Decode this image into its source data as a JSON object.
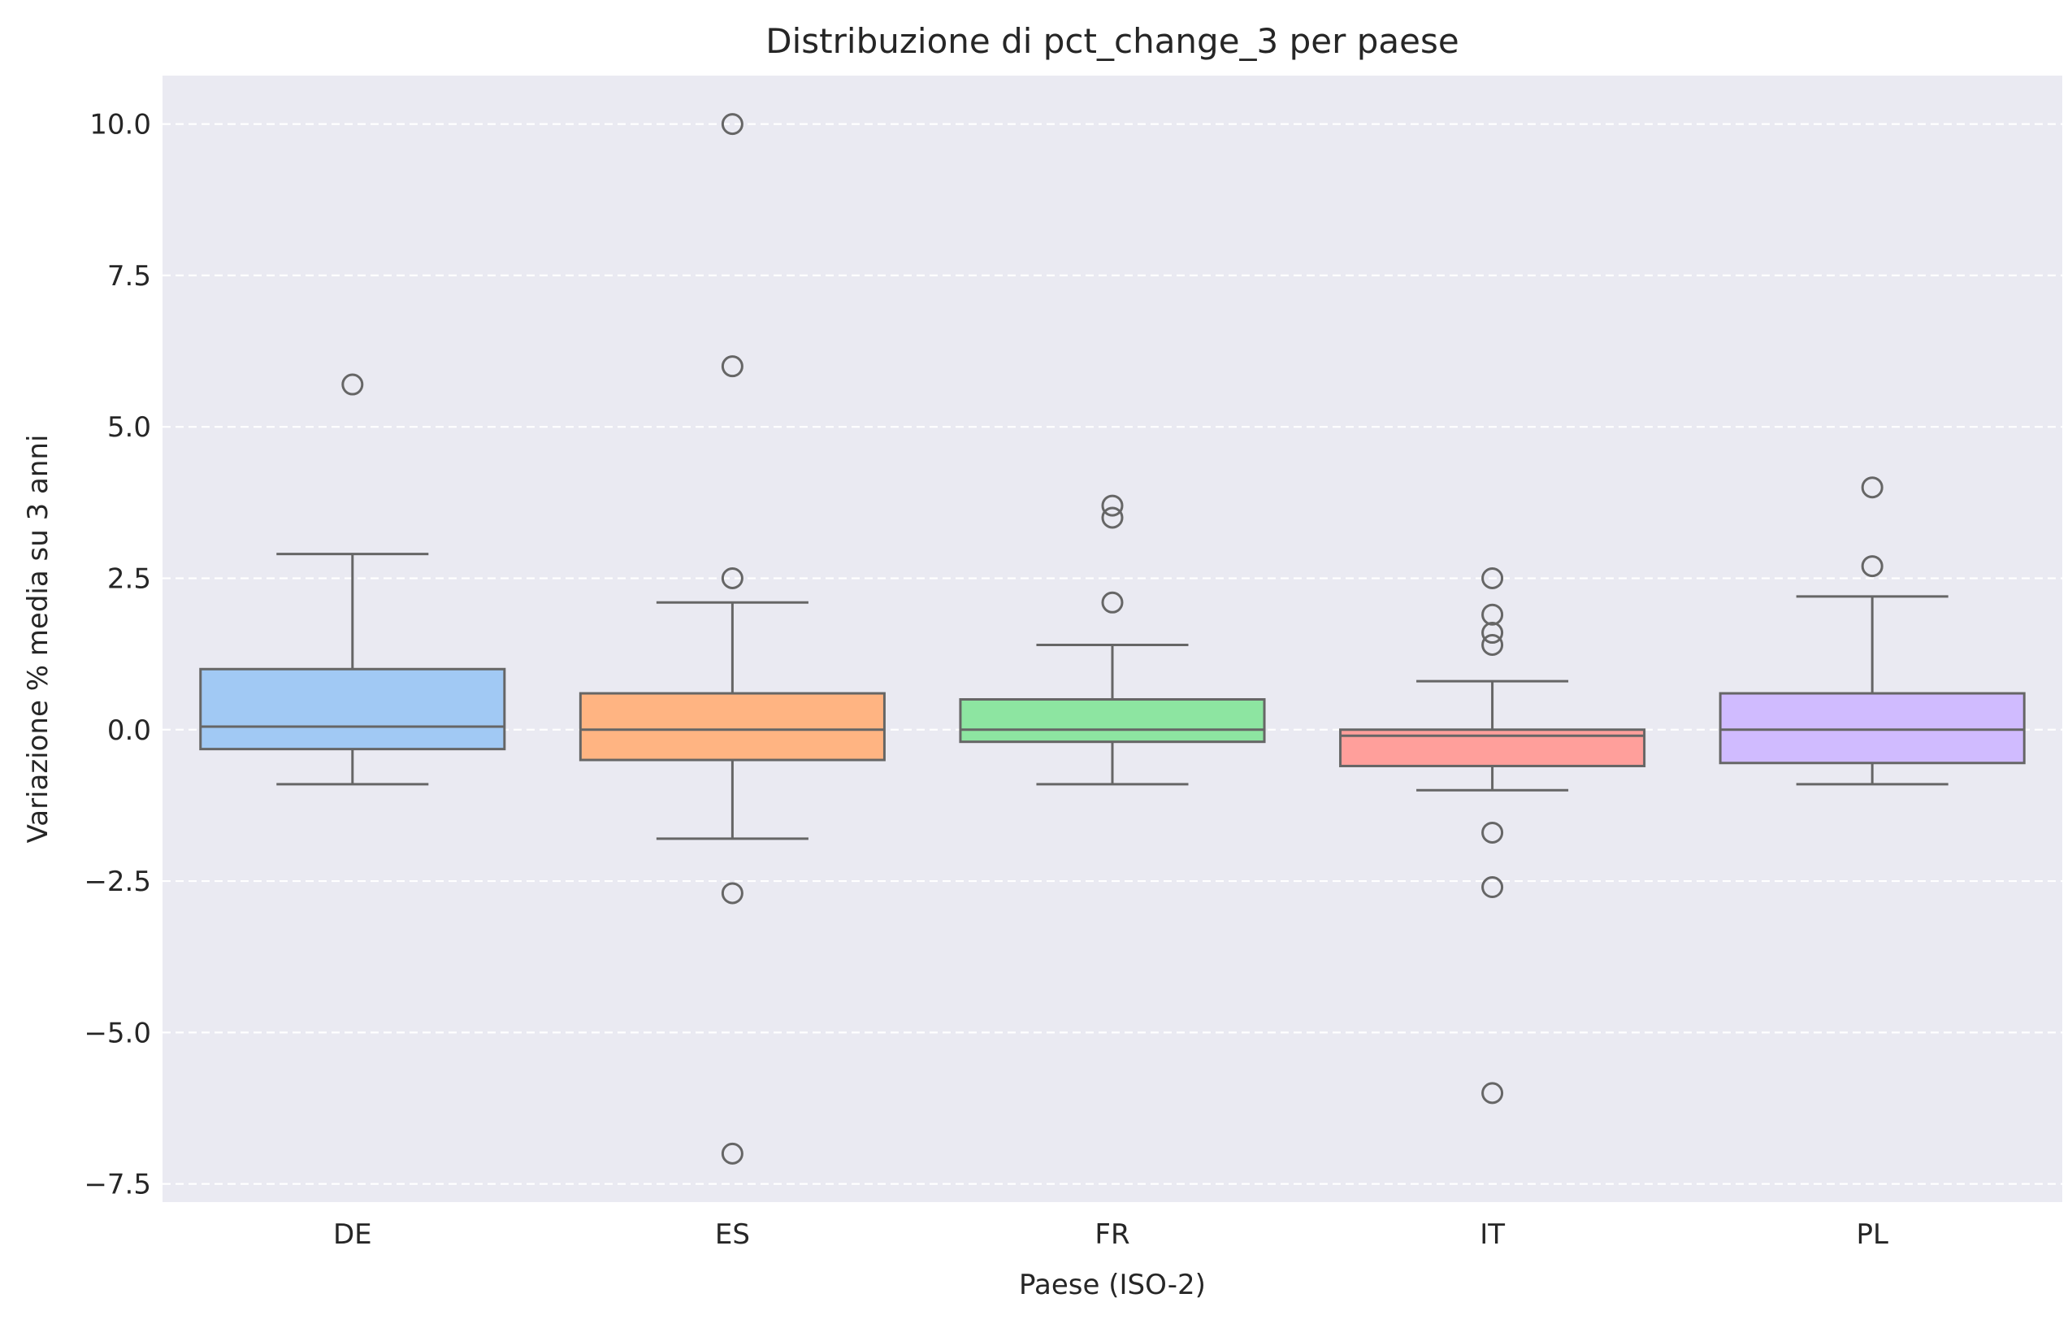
{
  "chart_data": {
    "type": "box",
    "title": "Distribuzione di pct_change_3 per paese",
    "xlabel": "Paese (ISO-2)",
    "ylabel": "Variazione % media su 3 anni",
    "ylim": [
      -7.8,
      10.8
    ],
    "yticks": [
      -7.5,
      -5.0,
      -2.5,
      0.0,
      2.5,
      5.0,
      7.5,
      10.0
    ],
    "ytick_labels": [
      "−7.5",
      "−5.0",
      "−2.5",
      "0.0",
      "2.5",
      "5.0",
      "7.5",
      "10.0"
    ],
    "grid": true,
    "grid_style": "dashed-horizontal",
    "background_color": "#eaeaf2",
    "categories": [
      "DE",
      "ES",
      "FR",
      "IT",
      "PL"
    ],
    "boxes": [
      {
        "name": "DE",
        "color": "#a1c9f4",
        "whislo": -0.9,
        "q1": -0.32,
        "median": 0.05,
        "q3": 1.0,
        "whishi": 2.9,
        "fliers": [
          5.7
        ]
      },
      {
        "name": "ES",
        "color": "#ffb482",
        "whislo": -1.8,
        "q1": -0.5,
        "median": 0.0,
        "q3": 0.6,
        "whishi": 2.1,
        "fliers": [
          10.0,
          6.0,
          2.5,
          -2.7,
          -7.0
        ]
      },
      {
        "name": "FR",
        "color": "#8de5a1",
        "whislo": -0.9,
        "q1": -0.2,
        "median": 0.0,
        "q3": 0.5,
        "whishi": 1.4,
        "fliers": [
          3.7,
          3.5,
          2.1
        ]
      },
      {
        "name": "IT",
        "color": "#ff9f9b",
        "whislo": -1.0,
        "q1": -0.6,
        "median": -0.1,
        "q3": 0.0,
        "whishi": 0.8,
        "fliers": [
          2.5,
          1.9,
          1.6,
          1.4,
          -1.7,
          -2.6,
          -6.0
        ]
      },
      {
        "name": "PL",
        "color": "#d0bbff",
        "whislo": -0.9,
        "q1": -0.55,
        "median": 0.0,
        "q3": 0.6,
        "whishi": 2.2,
        "fliers": [
          4.0,
          2.7
        ]
      }
    ]
  }
}
